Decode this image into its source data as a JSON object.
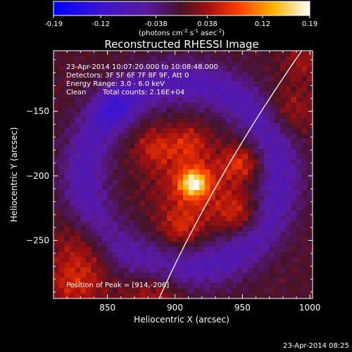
{
  "chart_data": {
    "type": "heatmap",
    "title": "Reconstructed RHESSI Image",
    "xlabel": "Heliocentric X (arcsec)",
    "ylabel": "Heliocentric Y (arcsec)",
    "xlim": [
      810,
      1002
    ],
    "ylim": [
      -295,
      -103
    ],
    "x_ticks": [
      850,
      900,
      950,
      1000
    ],
    "y_ticks": [
      -150,
      -200,
      -250
    ],
    "colorbar": {
      "ticks": [
        "-0.19",
        "-0.12",
        "-0.038",
        "0.038",
        "0.12",
        "0.19"
      ],
      "tick_values": [
        -0.19,
        -0.12,
        -0.038,
        0.038,
        0.12,
        0.19
      ],
      "unit_label": "(photons cm",
      "unit_sup1": "-2",
      "unit_mid": " s",
      "unit_sup2": "-1",
      "unit_tail": " asec",
      "unit_sup3": "-2",
      "unit_end": ")"
    },
    "annotations": {
      "time_range": "23-Apr-2014 10:07:20.000 to 10:08:48.000",
      "detectors": "Detectors: 3F 5F 6F 7F 8F 9F, Att 0",
      "energy_range": "Energy Range: 3.0 - 6.0 keV",
      "clean": "Clean",
      "total_counts": "Total counts: 2.16E+04",
      "peak": "Position of Peak = [914,-206]"
    },
    "peak_value": 0.19,
    "peak_position": [
      914,
      -206
    ],
    "timestamp": "23-Apr-2014 08:25"
  }
}
